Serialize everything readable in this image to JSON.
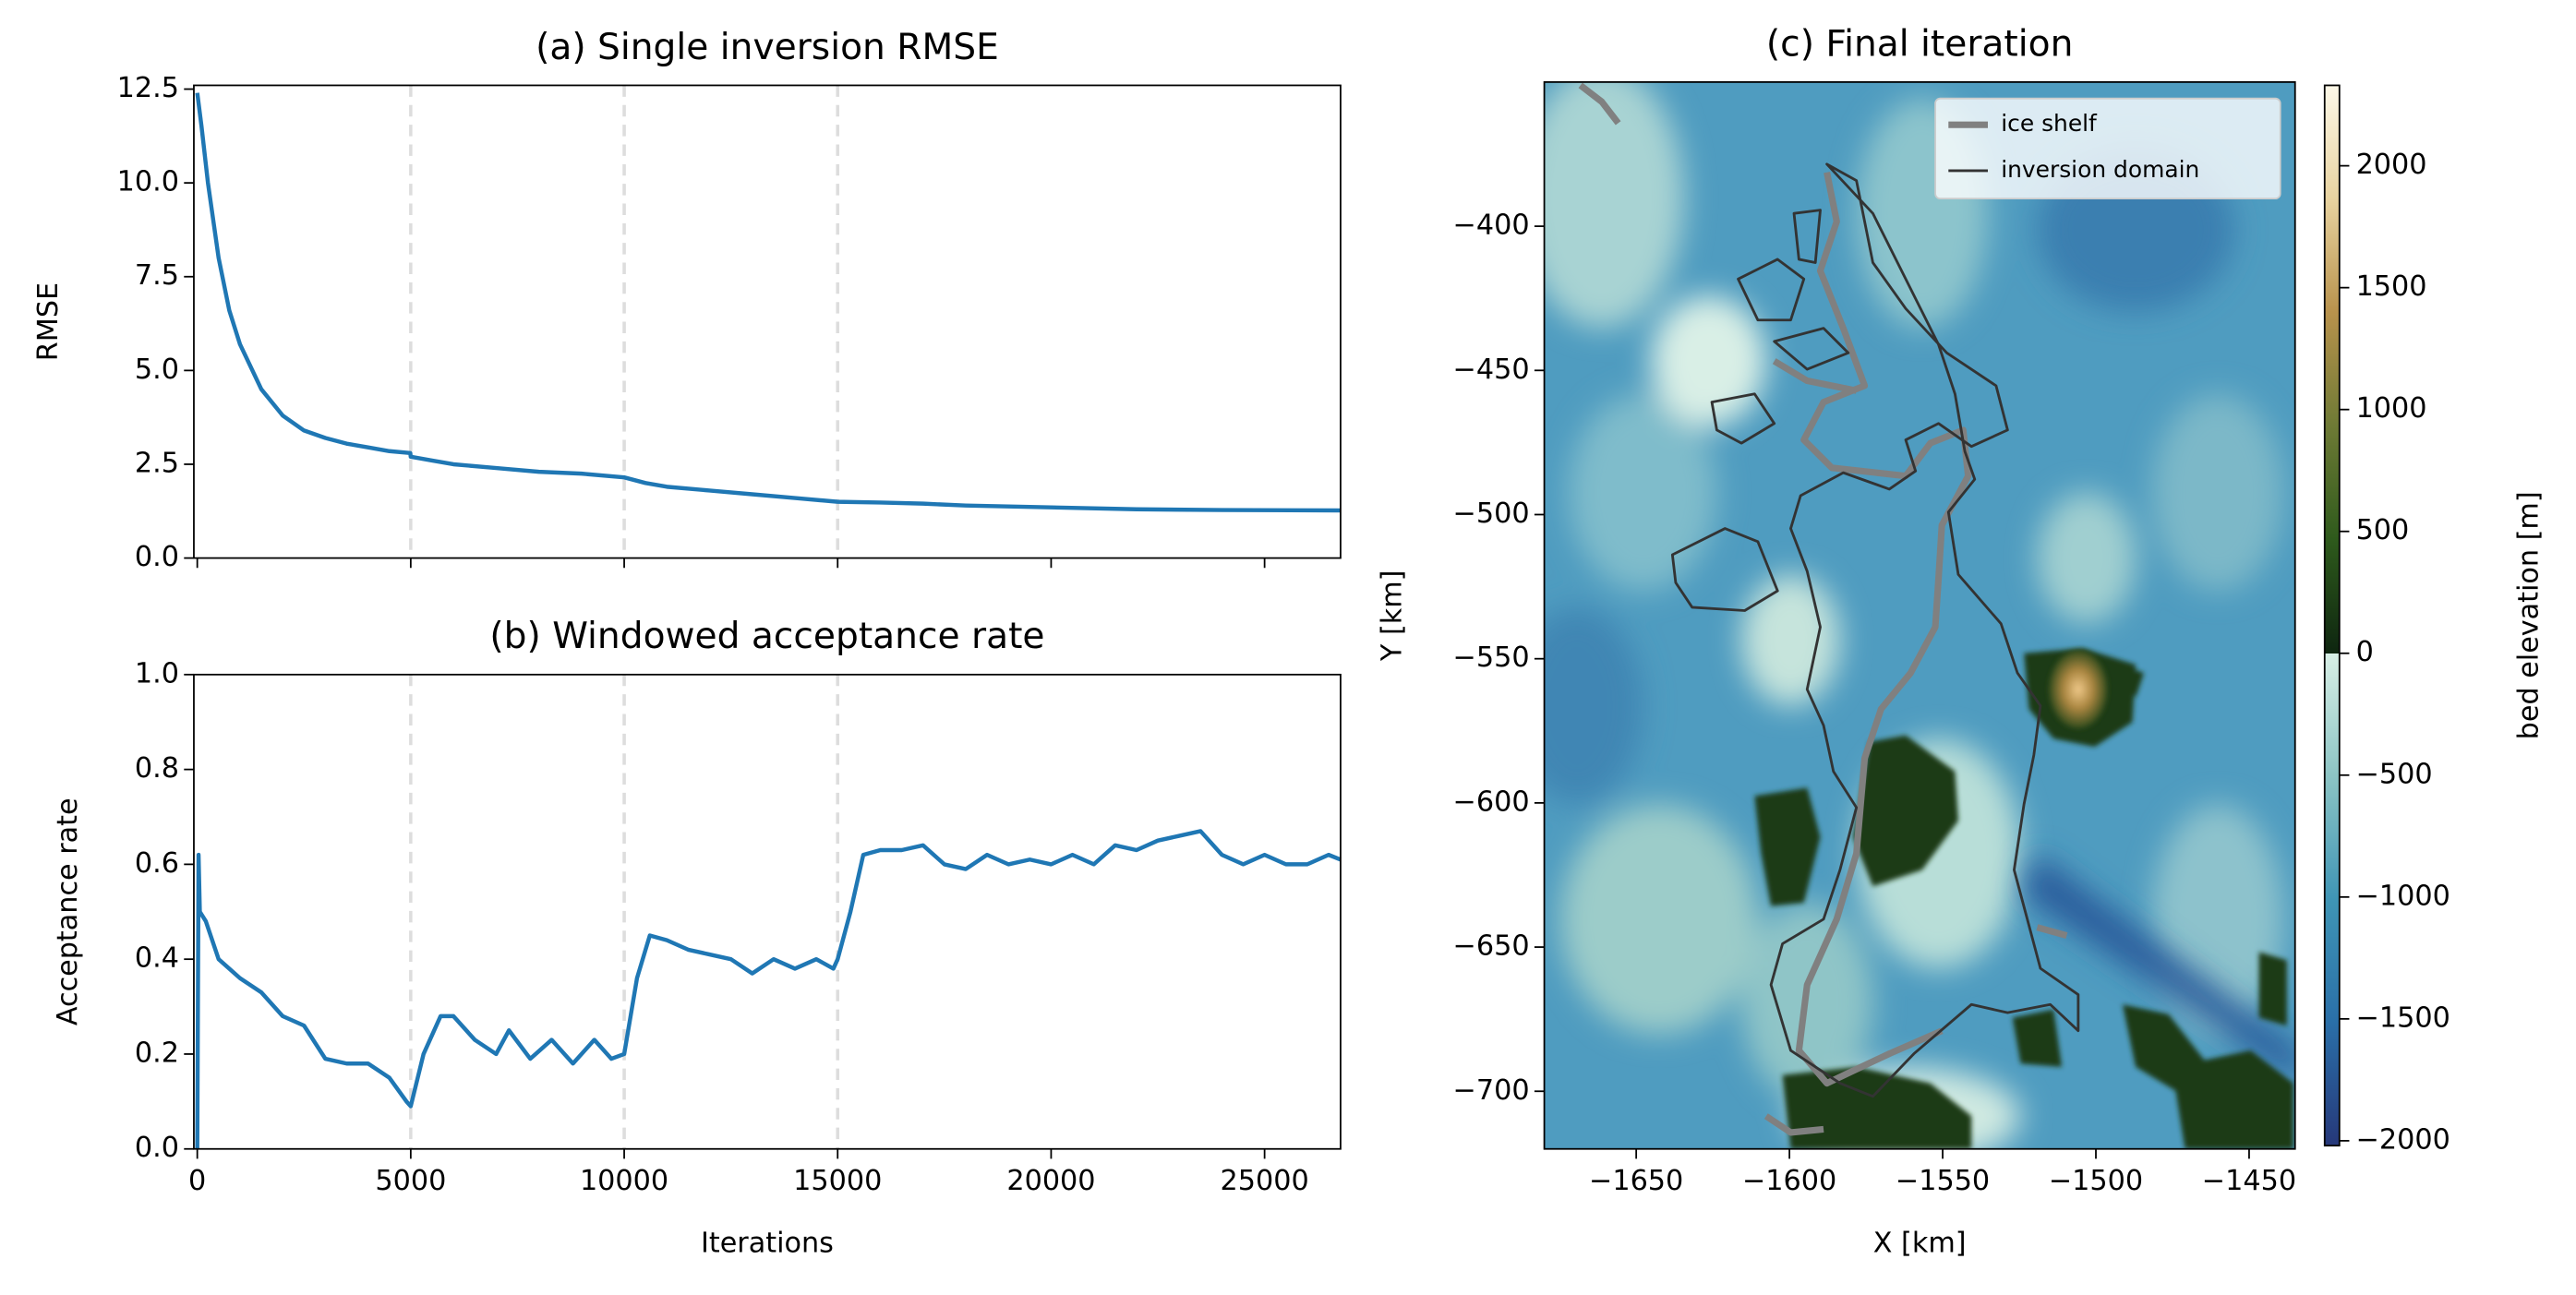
{
  "chart_data": [
    {
      "type": "line",
      "title": "(a) Single inversion RMSE",
      "ylabel": "RMSE",
      "x": [
        0,
        100,
        250,
        500,
        750,
        1000,
        1500,
        2000,
        2500,
        3000,
        3500,
        4000,
        4500,
        4990,
        5000,
        5500,
        6000,
        7000,
        8000,
        9000,
        10000,
        10500,
        11000,
        12000,
        13000,
        14000,
        15000,
        16000,
        17000,
        18000,
        20000,
        22000,
        24000,
        26780
      ],
      "series": [
        {
          "color": "#1f77b4",
          "values": [
            12.4,
            11.5,
            10.0,
            8.0,
            6.6,
            5.7,
            4.5,
            3.8,
            3.4,
            3.2,
            3.05,
            2.95,
            2.85,
            2.8,
            2.7,
            2.6,
            2.5,
            2.4,
            2.3,
            2.25,
            2.15,
            2.0,
            1.9,
            1.8,
            1.7,
            1.6,
            1.5,
            1.48,
            1.45,
            1.4,
            1.35,
            1.3,
            1.28,
            1.27
          ]
        }
      ],
      "xlim": [
        -80,
        26780
      ],
      "xticks": [
        0,
        5000,
        10000,
        15000,
        20000,
        25000
      ],
      "ylim": [
        0,
        12.6
      ],
      "yticks": [
        {
          "value": 0,
          "label": "0.0"
        },
        2.5,
        {
          "value": 5,
          "label": "5.0"
        },
        7.5,
        {
          "value": 10,
          "label": "10.0"
        },
        12.5
      ],
      "vlines": [
        5000,
        10000,
        15000
      ]
    },
    {
      "type": "line",
      "title": "(b) Windowed acceptance rate",
      "xlabel": "Iterations",
      "ylabel": "Acceptance rate",
      "x": [
        0,
        30,
        60,
        200,
        500,
        1000,
        1500,
        2000,
        2500,
        3000,
        3500,
        4000,
        4500,
        4900,
        5000,
        5300,
        5700,
        6000,
        6500,
        7000,
        7300,
        7800,
        8300,
        8800,
        9300,
        9700,
        10000,
        10300,
        10600,
        11000,
        11500,
        12000,
        12500,
        13000,
        13500,
        14000,
        14500,
        14900,
        15000,
        15300,
        15600,
        16000,
        16500,
        17000,
        17500,
        18000,
        18500,
        19000,
        19500,
        20000,
        20500,
        21000,
        21500,
        22000,
        22500,
        23000,
        23500,
        24000,
        24500,
        25000,
        25500,
        26000,
        26500,
        26780
      ],
      "series": [
        {
          "color": "#1f77b4",
          "values": [
            0.0,
            0.62,
            0.5,
            0.48,
            0.4,
            0.36,
            0.33,
            0.28,
            0.26,
            0.19,
            0.18,
            0.18,
            0.15,
            0.1,
            0.09,
            0.2,
            0.28,
            0.28,
            0.23,
            0.2,
            0.25,
            0.19,
            0.23,
            0.18,
            0.23,
            0.19,
            0.2,
            0.36,
            0.45,
            0.44,
            0.42,
            0.41,
            0.4,
            0.37,
            0.4,
            0.38,
            0.4,
            0.38,
            0.4,
            0.5,
            0.62,
            0.63,
            0.63,
            0.64,
            0.6,
            0.59,
            0.62,
            0.6,
            0.61,
            0.6,
            0.62,
            0.6,
            0.64,
            0.63,
            0.65,
            0.66,
            0.67,
            0.62,
            0.6,
            0.62,
            0.6,
            0.6,
            0.62,
            0.61
          ]
        }
      ],
      "xlim": [
        -80,
        26780
      ],
      "xticks": [
        0,
        5000,
        10000,
        15000,
        20000,
        25000
      ],
      "ylim": [
        0,
        1
      ],
      "yticks": [
        {
          "value": 0,
          "label": "0.0"
        },
        0.2,
        0.4,
        0.6,
        0.8,
        {
          "value": 1,
          "label": "1.0"
        }
      ],
      "vlines": [
        5000,
        10000,
        15000
      ]
    },
    {
      "type": "map",
      "title": "(c) Final iteration",
      "xlabel": "X [km]",
      "ylabel": "Y [km]",
      "xlim": [
        -1680,
        -1435
      ],
      "xticks": [
        {
          "value": -1650,
          "label": "−1650"
        },
        {
          "value": -1600,
          "label": "−1600"
        },
        {
          "value": -1550,
          "label": "−1550"
        },
        {
          "value": -1500,
          "label": "−1500"
        },
        {
          "value": -1450,
          "label": "−1450"
        }
      ],
      "ylim": [
        -720,
        -350
      ],
      "yticks": [
        {
          "value": -400,
          "label": "−400"
        },
        {
          "value": -450,
          "label": "−450"
        },
        {
          "value": -500,
          "label": "−500"
        },
        {
          "value": -550,
          "label": "−550"
        },
        {
          "value": -600,
          "label": "−600"
        },
        {
          "value": -650,
          "label": "−650"
        },
        {
          "value": -700,
          "label": "−700"
        }
      ],
      "legend": {
        "loc": "upper right",
        "entries": [
          {
            "name": "ice shelf",
            "color": "#808080"
          },
          {
            "name": "inversion domain",
            "color": "#333333"
          }
        ]
      },
      "colorbar": {
        "label": "bed elevation [m]",
        "clim": [
          -2020,
          2330
        ],
        "vcenter": 0,
        "colors_below": [
          "#26387a",
          "#2a6fa8",
          "#3f95b5",
          "#8cc4c4",
          "#d8efe6"
        ],
        "colors_above": [
          "#0e2610",
          "#2e5a1c",
          "#6e7a35",
          "#b8924c",
          "#e8d3a0",
          "#fdf8e8"
        ],
        "ticks": [
          {
            "value": -2000,
            "label": "−2000"
          },
          {
            "value": -1500,
            "label": "−1500"
          },
          {
            "value": -1000,
            "label": "−1000"
          },
          {
            "value": -500,
            "label": "−500"
          },
          0,
          500,
          1000,
          1500,
          2000
        ]
      }
    }
  ]
}
